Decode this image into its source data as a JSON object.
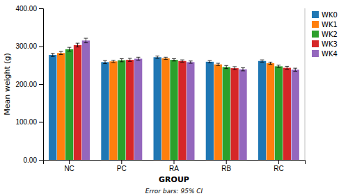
{
  "chart_data": {
    "type": "bar",
    "xlabel": "GROUP",
    "ylabel": "Mean weight (g)",
    "annotations": [
      "Error bars: 95% CI"
    ],
    "categories": [
      "NC",
      "PC",
      "RA",
      "RB",
      "RC"
    ],
    "series": [
      {
        "name": "WK0",
        "values": [
          277,
          258,
          271,
          259,
          261
        ],
        "errors": [
          4,
          4,
          3,
          3,
          3
        ]
      },
      {
        "name": "WK1",
        "values": [
          282,
          260,
          268,
          252,
          255
        ],
        "errors": [
          4,
          3,
          3,
          3,
          3
        ]
      },
      {
        "name": "WK2",
        "values": [
          292,
          263,
          264,
          245,
          247
        ],
        "errors": [
          5,
          4,
          3,
          4,
          3
        ]
      },
      {
        "name": "WK3",
        "values": [
          303,
          264,
          261,
          242,
          243
        ],
        "errors": [
          5,
          4,
          3,
          4,
          4
        ]
      },
      {
        "name": "WK4",
        "values": [
          315,
          267,
          258,
          239,
          238
        ],
        "errors": [
          6,
          4,
          3,
          4,
          4
        ]
      }
    ],
    "ylim": [
      0,
      400
    ],
    "yticks": [
      {
        "value": 0,
        "label": "0.00"
      },
      {
        "value": 100,
        "label": "100.00"
      },
      {
        "value": 200,
        "label": "200.00"
      },
      {
        "value": 300,
        "label": "300.00"
      },
      {
        "value": 400,
        "label": "400.00"
      }
    ],
    "grid": false,
    "legend": "upper right"
  }
}
